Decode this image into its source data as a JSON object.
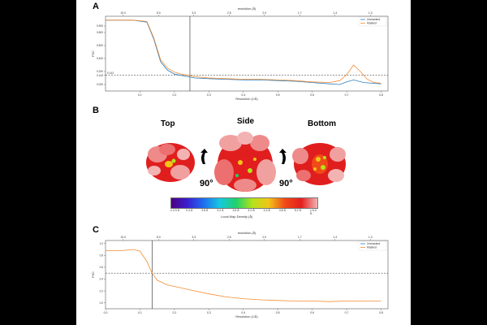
{
  "panels": {
    "A": {
      "letter": "A",
      "top_axis_label": "resolution (Å)",
      "bottom_axis_label": "Resolution (1/Å)",
      "ylabel": "FSC",
      "legend": [
        "Unmasked",
        "Masked"
      ],
      "threshold_labels": [
        "0.143"
      ],
      "colors": {
        "unmasked": "#2f7fc1",
        "masked": "#f28c33"
      }
    },
    "B": {
      "letter": "B",
      "views": {
        "top": "Top",
        "side": "Side",
        "bottom": "Bottom"
      },
      "rotations": [
        "90°",
        "90°"
      ],
      "colorbar": {
        "title": "Local Map Density (Å)",
        "ticks": [
          "≤ 2.0 Å",
          "2.4 Å",
          "2.8 Å",
          "3.2 Å",
          "3.6 Å",
          "4.0 Å",
          "4.4 Å",
          "4.8 Å",
          "5.2 Å",
          "≥ 6.0 Å"
        ],
        "colors": [
          "#4b0082",
          "#3a1fd1",
          "#1f6ff0",
          "#16c8e0",
          "#1fd16b",
          "#b5e21a",
          "#f2c418",
          "#f04a18",
          "#e41e1e",
          "#f3b3b3"
        ]
      }
    },
    "C": {
      "letter": "C",
      "top_axis_label": "resolution (Å)",
      "bottom_axis_label": "Resolution (1/Å)",
      "ylabel": "FSC",
      "legend": [
        "Unmasked",
        "Masked"
      ],
      "colors": {
        "unmasked": "#2f7fc1",
        "masked": "#f28c33"
      }
    }
  },
  "chart_data": [
    {
      "type": "line",
      "title": "",
      "xlabel": "Resolution (1/Å)",
      "ylabel": "FSC",
      "xlim": [
        0.0,
        0.82
      ],
      "ylim": [
        -0.1,
        1.05
      ],
      "x_ticks": [
        "0.1",
        "0.2",
        "0.3",
        "0.4",
        "0.5",
        "0.6",
        "0.7",
        "0.8"
      ],
      "y_ticks": [
        "0.900",
        "0.800",
        "0.600",
        "0.400",
        "0.200",
        "0.143",
        "0.000"
      ],
      "top_ticks": [
        "10.0",
        "5.0",
        "3.3",
        "2.5",
        "2.0",
        "1.7",
        "1.4",
        "1.3"
      ],
      "threshold": 0.143,
      "cutoff_x": 0.245,
      "series": [
        {
          "name": "Unmasked",
          "x": [
            0.0,
            0.08,
            0.12,
            0.14,
            0.16,
            0.18,
            0.2,
            0.22,
            0.24,
            0.26,
            0.3,
            0.35,
            0.4,
            0.45,
            0.5,
            0.55,
            0.6,
            0.65,
            0.68,
            0.7,
            0.72,
            0.75,
            0.8
          ],
          "values": [
            0.99,
            0.99,
            0.96,
            0.7,
            0.35,
            0.22,
            0.16,
            0.14,
            0.12,
            0.1,
            0.09,
            0.08,
            0.07,
            0.07,
            0.06,
            0.05,
            0.03,
            0.01,
            0.0,
            0.04,
            0.07,
            0.03,
            0.01
          ]
        },
        {
          "name": "Masked",
          "x": [
            0.0,
            0.08,
            0.12,
            0.14,
            0.16,
            0.18,
            0.2,
            0.22,
            0.24,
            0.26,
            0.3,
            0.35,
            0.4,
            0.45,
            0.5,
            0.55,
            0.6,
            0.65,
            0.68,
            0.7,
            0.72,
            0.74,
            0.76,
            0.78,
            0.8
          ],
          "values": [
            0.99,
            0.99,
            0.97,
            0.72,
            0.38,
            0.25,
            0.19,
            0.16,
            0.14,
            0.12,
            0.1,
            0.09,
            0.08,
            0.08,
            0.07,
            0.06,
            0.04,
            0.03,
            0.06,
            0.15,
            0.3,
            0.2,
            0.08,
            0.03,
            0.02
          ]
        }
      ]
    },
    {
      "type": "line",
      "title": "",
      "xlabel": "Resolution (1/Å)",
      "ylabel": "FSC",
      "xlim": [
        0.0,
        0.82
      ],
      "ylim": [
        -0.1,
        1.05
      ],
      "x_ticks": [
        "0.0",
        "0.1",
        "0.2",
        "0.3",
        "0.4",
        "0.5",
        "0.6",
        "0.7",
        "0.8"
      ],
      "y_ticks": [
        "1.0",
        "0.8",
        "0.6",
        "0.4",
        "0.2",
        "0.0"
      ],
      "top_ticks": [
        "10.0",
        "5.0",
        "3.3",
        "2.5",
        "2.0",
        "1.7",
        "1.4",
        "1.3"
      ],
      "threshold": 0.5,
      "cutoff_x": 0.135,
      "series": [
        {
          "name": "Masked",
          "x": [
            0.0,
            0.05,
            0.08,
            0.1,
            0.12,
            0.135,
            0.15,
            0.18,
            0.22,
            0.26,
            0.3,
            0.35,
            0.4,
            0.45,
            0.5,
            0.55,
            0.6,
            0.65,
            0.7,
            0.75,
            0.8
          ],
          "values": [
            0.88,
            0.88,
            0.9,
            0.87,
            0.7,
            0.5,
            0.38,
            0.3,
            0.25,
            0.2,
            0.15,
            0.1,
            0.07,
            0.05,
            0.04,
            0.03,
            0.03,
            0.02,
            0.03,
            0.03,
            0.03
          ]
        }
      ]
    }
  ]
}
